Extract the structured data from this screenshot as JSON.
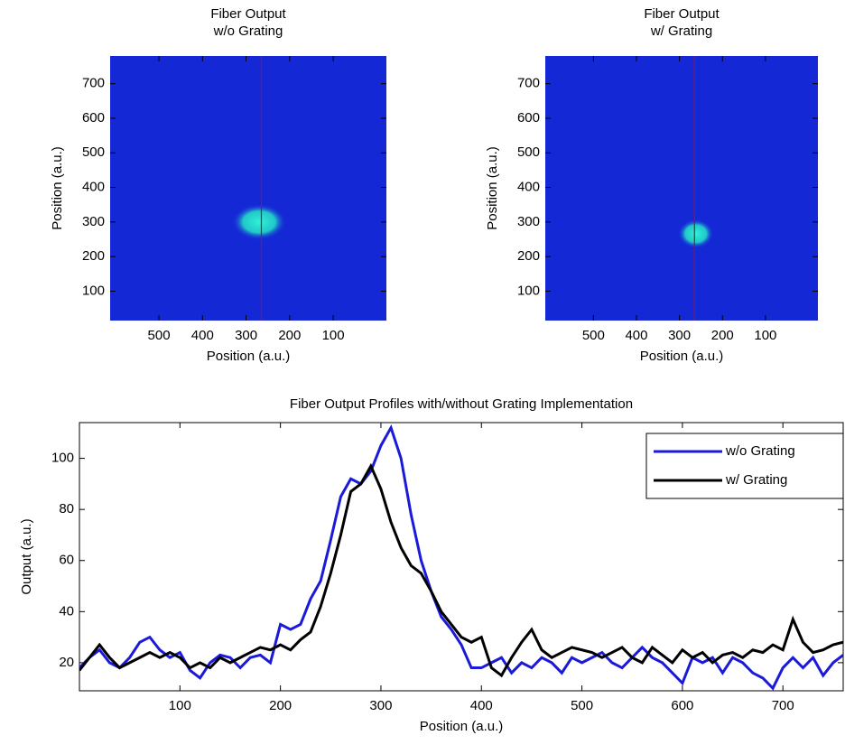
{
  "chart_data": [
    {
      "type": "image",
      "title": [
        "Fiber Output",
        "w/o Grating"
      ],
      "xlabel": "Position (a.u.)",
      "ylabel": "Position (a.u.)",
      "xlim": [
        612,
        -22
      ],
      "ylim": [
        15,
        780
      ],
      "xticks": [
        500,
        400,
        300,
        200,
        100
      ],
      "yticks": [
        100,
        200,
        300,
        400,
        500,
        600,
        700
      ],
      "background": "#1528d6",
      "line_x": 265,
      "line_color": "#b01010",
      "spot": {
        "x": 270,
        "y": 300,
        "width": 124,
        "height": 104
      }
    },
    {
      "type": "image",
      "title": [
        "Fiber Output",
        "w/ Grating"
      ],
      "xlabel": "Position (a.u.)",
      "ylabel": "Position (a.u.)",
      "xlim": [
        612,
        -22
      ],
      "ylim": [
        15,
        780
      ],
      "xticks": [
        500,
        400,
        300,
        200,
        100
      ],
      "yticks": [
        100,
        200,
        300,
        400,
        500,
        600,
        700
      ],
      "background": "#1528d6",
      "line_x": 265,
      "line_color": "#b01010",
      "spot": {
        "x": 262,
        "y": 266,
        "width": 83,
        "height": 84
      }
    },
    {
      "type": "line",
      "title": "Fiber Output Profiles with/without Grating Implementation",
      "xlabel": "Position (a.u.)",
      "ylabel": "Output (a.u.)",
      "xlim": [
        0,
        760
      ],
      "ylim": [
        9,
        114
      ],
      "xticks": [
        100,
        200,
        300,
        400,
        500,
        600,
        700
      ],
      "yticks": [
        20,
        40,
        60,
        80,
        100
      ],
      "legend": "upper right",
      "x": [
        0,
        10,
        20,
        30,
        40,
        50,
        60,
        70,
        80,
        90,
        100,
        110,
        120,
        130,
        140,
        150,
        160,
        170,
        180,
        190,
        200,
        210,
        220,
        230,
        240,
        250,
        260,
        270,
        280,
        290,
        300,
        310,
        320,
        330,
        340,
        350,
        360,
        370,
        380,
        390,
        400,
        410,
        420,
        430,
        440,
        450,
        460,
        470,
        480,
        490,
        500,
        510,
        520,
        530,
        540,
        550,
        560,
        570,
        580,
        590,
        600,
        610,
        620,
        630,
        640,
        650,
        660,
        670,
        680,
        690,
        700,
        710,
        720,
        730,
        740,
        750,
        760
      ],
      "series": [
        {
          "name": "w/o Grating",
          "color": "#1a1ad8",
          "values": [
            18,
            22,
            25,
            20,
            18,
            22,
            28,
            30,
            25,
            22,
            24,
            17,
            14,
            20,
            23,
            22,
            18,
            22,
            23,
            20,
            35,
            33,
            35,
            45,
            52,
            68,
            85,
            92,
            90,
            95,
            105,
            112,
            100,
            78,
            60,
            48,
            38,
            33,
            27,
            18,
            18,
            20,
            22,
            16,
            20,
            18,
            22,
            20,
            16,
            22,
            20,
            22,
            24,
            20,
            18,
            22,
            26,
            22,
            20,
            16,
            12,
            22,
            20,
            22,
            16,
            22,
            20,
            16,
            14,
            10,
            18,
            22,
            18,
            22,
            15,
            20,
            23
          ]
        },
        {
          "name": "w/ Grating",
          "color": "#000000",
          "values": [
            17,
            22,
            27,
            22,
            18,
            20,
            22,
            24,
            22,
            24,
            22,
            18,
            20,
            18,
            22,
            20,
            22,
            24,
            26,
            25,
            27,
            25,
            29,
            32,
            42,
            55,
            70,
            87,
            90,
            97,
            88,
            75,
            65,
            58,
            55,
            48,
            40,
            35,
            30,
            28,
            30,
            18,
            15,
            22,
            28,
            33,
            25,
            22,
            24,
            26,
            25,
            24,
            22,
            24,
            26,
            22,
            20,
            26,
            23,
            20,
            25,
            22,
            24,
            20,
            23,
            24,
            22,
            25,
            24,
            27,
            25,
            37,
            28,
            24,
            25,
            27,
            28
          ]
        }
      ]
    }
  ]
}
